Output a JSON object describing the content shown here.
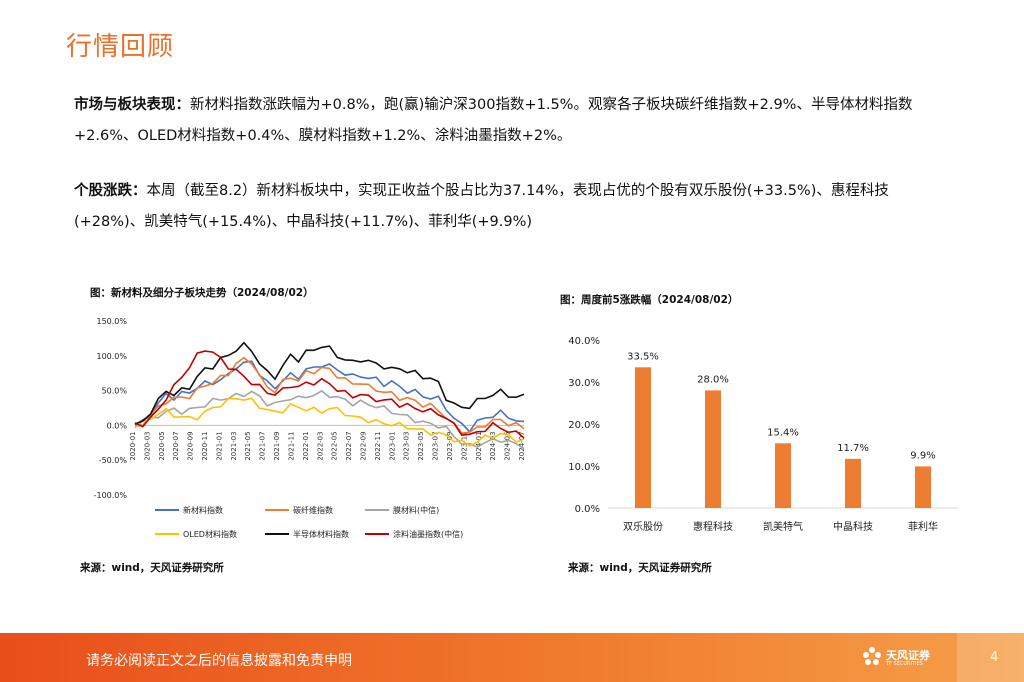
{
  "page": {
    "title": "行情回顾",
    "paragraph1": {
      "label": "市场与板块表现：",
      "text": "新材料指数涨跌幅为+0.8%，跑(赢)输沪深300指数+1.5%。观察各子板块碳纤维指数+2.9%、半导体材料指数+2.6%、OLED材料指数+0.4%、膜材料指数+1.2%、涂料油墨指数+2%。"
    },
    "paragraph2": {
      "label": "个股涨跌：",
      "text": "本周（截至8.2）新材料板块中，实现正收益个股占比为37.14%，表现占优的个股有双乐股份(+33.5%)、惠程科技(+28%)、凯美特气(+15.4%)、中晶科技(+11.7%)、菲利华(+9.9%)"
    },
    "footer": {
      "disclaimer": "请务必阅读正文之后的信息披露和免责申明",
      "logo_name": "天风证券",
      "logo_sub": "TF SECURITIES",
      "page_number": "4"
    },
    "colors": {
      "accent": "#E8722A",
      "bar": "#ED7D31"
    }
  },
  "chart_data": [
    {
      "type": "line",
      "title": "图：新材料及细分子板块走势（2024/08/02）",
      "source": "来源：wind，天风证券研究所",
      "y_ticks": [
        "150.0%",
        "100.0%",
        "50.0%",
        "0.0%",
        "-50.0%",
        "-100.0%"
      ],
      "ylim": [
        -100,
        150
      ],
      "x_ticks": [
        "2020-01",
        "2020-03",
        "2020-05",
        "2020-07",
        "2020-09",
        "2020-11",
        "2021-01",
        "2021-03",
        "2021-05",
        "2021-07",
        "2021-09",
        "2021-11",
        "2022-01",
        "2022-03",
        "2022-05",
        "2022-07",
        "2022-09",
        "2022-11",
        "2023-01",
        "2023-03",
        "2023-05",
        "2023-07",
        "2023-09",
        "2023-11",
        "2024-01",
        "2024-03",
        "2024-05",
        "2024-07"
      ],
      "series": [
        {
          "name": "新材料指数",
          "color": "#4472C4",
          "values": [
            0,
            5,
            18,
            30,
            45,
            40,
            45,
            48,
            55,
            60,
            62,
            65,
            72,
            85,
            88,
            92,
            75,
            60,
            55,
            65,
            72,
            70,
            80,
            82,
            88,
            85,
            80,
            75,
            70,
            72,
            68,
            66,
            60,
            62,
            55,
            50,
            48,
            42,
            40,
            38,
            25,
            10,
            0,
            -5,
            5,
            10,
            15,
            18,
            12,
            8,
            2
          ]
        },
        {
          "name": "碳纤维指数",
          "color": "#ED7D31",
          "values": [
            0,
            3,
            15,
            25,
            35,
            38,
            40,
            42,
            50,
            58,
            62,
            68,
            75,
            88,
            95,
            92,
            70,
            55,
            50,
            62,
            70,
            65,
            75,
            78,
            82,
            80,
            72,
            65,
            60,
            62,
            55,
            52,
            48,
            45,
            40,
            38,
            35,
            30,
            28,
            22,
            12,
            0,
            -8,
            -10,
            -5,
            2,
            6,
            8,
            3,
            0,
            -3
          ]
        },
        {
          "name": "膜材料(中信)",
          "color": "#A5A5A5",
          "values": [
            0,
            2,
            8,
            14,
            20,
            22,
            20,
            22,
            25,
            30,
            35,
            38,
            40,
            42,
            45,
            48,
            40,
            32,
            30,
            35,
            40,
            38,
            42,
            44,
            46,
            44,
            40,
            36,
            32,
            33,
            30,
            28,
            24,
            20,
            16,
            12,
            8,
            4,
            2,
            0,
            -5,
            -15,
            -25,
            -30,
            -28,
            -25,
            -22,
            -20,
            -24,
            -27,
            -30
          ]
        },
        {
          "name": "OLED材料指数",
          "color": "#FFC000",
          "values": [
            0,
            3,
            10,
            18,
            20,
            15,
            12,
            10,
            12,
            18,
            25,
            30,
            35,
            40,
            38,
            35,
            28,
            22,
            18,
            22,
            28,
            26,
            24,
            22,
            20,
            25,
            22,
            18,
            12,
            10,
            8,
            5,
            3,
            2,
            0,
            -2,
            -5,
            -8,
            -10,
            -12,
            -15,
            -20,
            -25,
            -28,
            -22,
            -18,
            -15,
            -12,
            -16,
            -20,
            -22
          ]
        },
        {
          "name": "半导体材料指数",
          "color": "#111111",
          "values": [
            0,
            5,
            20,
            35,
            50,
            45,
            50,
            55,
            70,
            80,
            85,
            95,
            100,
            110,
            115,
            108,
            90,
            75,
            70,
            85,
            100,
            95,
            105,
            108,
            115,
            110,
            100,
            95,
            90,
            95,
            92,
            88,
            85,
            80,
            82,
            78,
            75,
            70,
            68,
            60,
            40,
            30,
            25,
            28,
            35,
            40,
            45,
            48,
            44,
            40,
            42
          ]
        },
        {
          "name": "涂料油墨指数(中信)",
          "color": "#C00000",
          "values": [
            0,
            2,
            10,
            22,
            40,
            55,
            70,
            85,
            100,
            110,
            105,
            95,
            85,
            78,
            70,
            62,
            55,
            48,
            45,
            50,
            58,
            55,
            60,
            62,
            64,
            60,
            52,
            46,
            42,
            45,
            40,
            38,
            35,
            36,
            30,
            28,
            25,
            22,
            20,
            18,
            10,
            0,
            -10,
            -15,
            -10,
            -5,
            0,
            -3,
            -8,
            -12,
            -15
          ]
        }
      ]
    },
    {
      "type": "bar",
      "title": "图：周度前5涨跌幅（2024/08/02）",
      "source": "来源：wind，天风证券研究所",
      "categories": [
        "双乐股份",
        "惠程科技",
        "凯美特气",
        "中晶科技",
        "菲利华"
      ],
      "values": [
        33.5,
        28.0,
        15.4,
        11.7,
        9.9
      ],
      "labels": [
        "33.5%",
        "28.0%",
        "15.4%",
        "11.7%",
        "9.9%"
      ],
      "y_ticks": [
        "40.0%",
        "30.0%",
        "20.0%",
        "10.0%",
        "0.0%"
      ],
      "ylim": [
        0,
        40
      ]
    }
  ]
}
